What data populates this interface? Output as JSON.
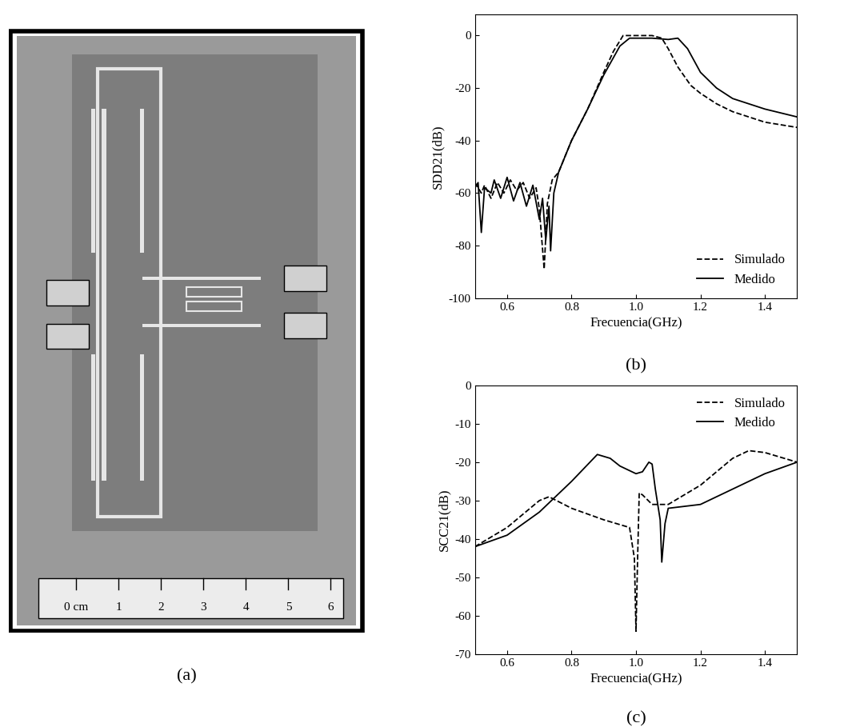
{
  "photo": {
    "caption": "(a)",
    "ruler": {
      "origin_label": "0 cm",
      "marks": [
        1,
        2,
        3,
        4,
        5,
        6
      ]
    }
  },
  "chart_data": [
    {
      "type": "line",
      "caption": "(b)",
      "x_label": "Frecuencia(GHz)",
      "y_label": "SDD21(dB)",
      "xlim": [
        0.5,
        1.5
      ],
      "xticks": [
        0.6,
        0.8,
        1.0,
        1.2,
        1.4
      ],
      "ylim": [
        -100,
        8
      ],
      "yticks": [
        -100,
        -80,
        -60,
        -40,
        -20,
        0
      ],
      "legend": "lower right",
      "series": [
        {
          "name": "Simulado",
          "color": "#000000",
          "line_style": "dashed",
          "x": [
            0.5,
            0.52,
            0.53,
            0.55,
            0.57,
            0.59,
            0.61,
            0.63,
            0.65,
            0.67,
            0.69,
            0.7,
            0.715,
            0.725,
            0.74,
            0.76,
            0.8,
            0.85,
            0.9,
            0.93,
            0.96,
            1.0,
            1.05,
            1.08,
            1.1,
            1.13,
            1.17,
            1.2,
            1.25,
            1.3,
            1.4,
            1.5
          ],
          "values": [
            -56,
            -60,
            -57,
            -62,
            -56,
            -60,
            -55,
            -59,
            -56,
            -62,
            -58,
            -66,
            -89,
            -64,
            -55,
            -52,
            -40,
            -28,
            -14,
            -6,
            0,
            0,
            0,
            -1,
            -5,
            -12,
            -19,
            -22,
            -26,
            -29,
            -33,
            -35
          ]
        },
        {
          "name": "Medido",
          "color": "#000000",
          "line_style": "solid",
          "x": [
            0.5,
            0.51,
            0.52,
            0.53,
            0.55,
            0.56,
            0.58,
            0.6,
            0.62,
            0.64,
            0.66,
            0.68,
            0.7,
            0.71,
            0.72,
            0.73,
            0.735,
            0.745,
            0.76,
            0.8,
            0.85,
            0.9,
            0.95,
            0.98,
            1.05,
            1.1,
            1.13,
            1.16,
            1.2,
            1.25,
            1.3,
            1.4,
            1.5
          ],
          "values": [
            -58,
            -56,
            -75,
            -58,
            -60,
            -55,
            -62,
            -54,
            -63,
            -56,
            -65,
            -57,
            -70,
            -62,
            -78,
            -65,
            -82,
            -60,
            -52,
            -40,
            -28,
            -15,
            -4,
            -1,
            -1,
            -1.5,
            -1,
            -5,
            -14,
            -20,
            -24,
            -28,
            -31
          ]
        }
      ]
    },
    {
      "type": "line",
      "caption": "(c)",
      "x_label": "Frecuencia(GHz)",
      "y_label": "SCC21(dB)",
      "xlim": [
        0.5,
        1.5
      ],
      "xticks": [
        0.6,
        0.8,
        1.0,
        1.2,
        1.4
      ],
      "ylim": [
        -70,
        0
      ],
      "yticks": [
        -70,
        -60,
        -50,
        -40,
        -30,
        -20,
        -10,
        0
      ],
      "legend": "upper right",
      "series": [
        {
          "name": "Simulado",
          "color": "#000000",
          "line_style": "dashed",
          "x": [
            0.5,
            0.6,
            0.7,
            0.73,
            0.8,
            0.9,
            0.98,
            0.995,
            1.0,
            1.005,
            1.01,
            1.02,
            1.05,
            1.1,
            1.2,
            1.3,
            1.35,
            1.4,
            1.5
          ],
          "values": [
            -42,
            -37,
            -30,
            -29,
            -32,
            -35,
            -37,
            -45,
            -64,
            -45,
            -28,
            -28.5,
            -31,
            -31,
            -26,
            -19,
            -17,
            -17.5,
            -20
          ]
        },
        {
          "name": "Medido",
          "color": "#000000",
          "line_style": "solid",
          "x": [
            0.5,
            0.6,
            0.7,
            0.8,
            0.88,
            0.92,
            0.95,
            1.0,
            1.02,
            1.04,
            1.05,
            1.06,
            1.075,
            1.08,
            1.09,
            1.1,
            1.15,
            1.2,
            1.3,
            1.4,
            1.5
          ],
          "values": [
            -42,
            -39,
            -33,
            -25,
            -18,
            -19,
            -21,
            -23,
            -22.5,
            -20,
            -20.5,
            -27,
            -35,
            -46,
            -36,
            -32,
            -31.5,
            -31,
            -27,
            -23,
            -20
          ]
        }
      ]
    }
  ]
}
